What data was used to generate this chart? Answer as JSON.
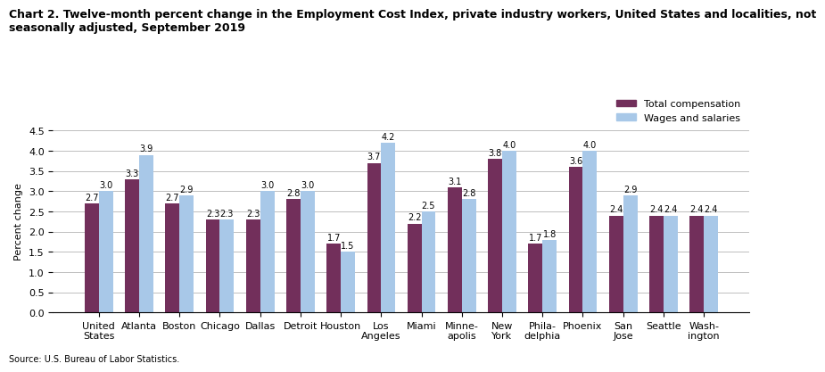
{
  "title_line1": "Chart 2. Twelve-month percent change in the Employment Cost Index, private industry workers, United States and localities, not",
  "title_line2": "seasonally adjusted, September 2019",
  "ylabel": "Percent change",
  "source": "Source: U.S. Bureau of Labor Statistics.",
  "categories": [
    "United\nStates",
    "Atlanta",
    "Boston",
    "Chicago",
    "Dallas",
    "Detroit",
    "Houston",
    "Los\nAngeles",
    "Miami",
    "Minne-\napolis",
    "New\nYork",
    "Phila-\ndelphia",
    "Phoenix",
    "San\nJose",
    "Seattle",
    "Wash-\nington"
  ],
  "total_compensation": [
    2.7,
    3.3,
    2.7,
    2.3,
    2.3,
    2.8,
    1.7,
    3.7,
    2.2,
    3.1,
    3.8,
    1.7,
    3.6,
    2.4,
    2.4,
    2.4
  ],
  "wages_salaries": [
    3.0,
    3.9,
    2.9,
    2.3,
    3.0,
    3.0,
    1.5,
    4.2,
    2.5,
    2.8,
    4.0,
    1.8,
    4.0,
    2.9,
    2.4,
    2.4
  ],
  "color_total": "#722F5B",
  "color_wages": "#A8C8E8",
  "ylim": [
    0,
    4.5
  ],
  "yticks": [
    0.0,
    0.5,
    1.0,
    1.5,
    2.0,
    2.5,
    3.0,
    3.5,
    4.0,
    4.5
  ],
  "legend_labels": [
    "Total compensation",
    "Wages and salaries"
  ],
  "bar_width": 0.35,
  "title_fontsize": 9,
  "axis_fontsize": 8,
  "tick_fontsize": 8,
  "label_fontsize": 7
}
